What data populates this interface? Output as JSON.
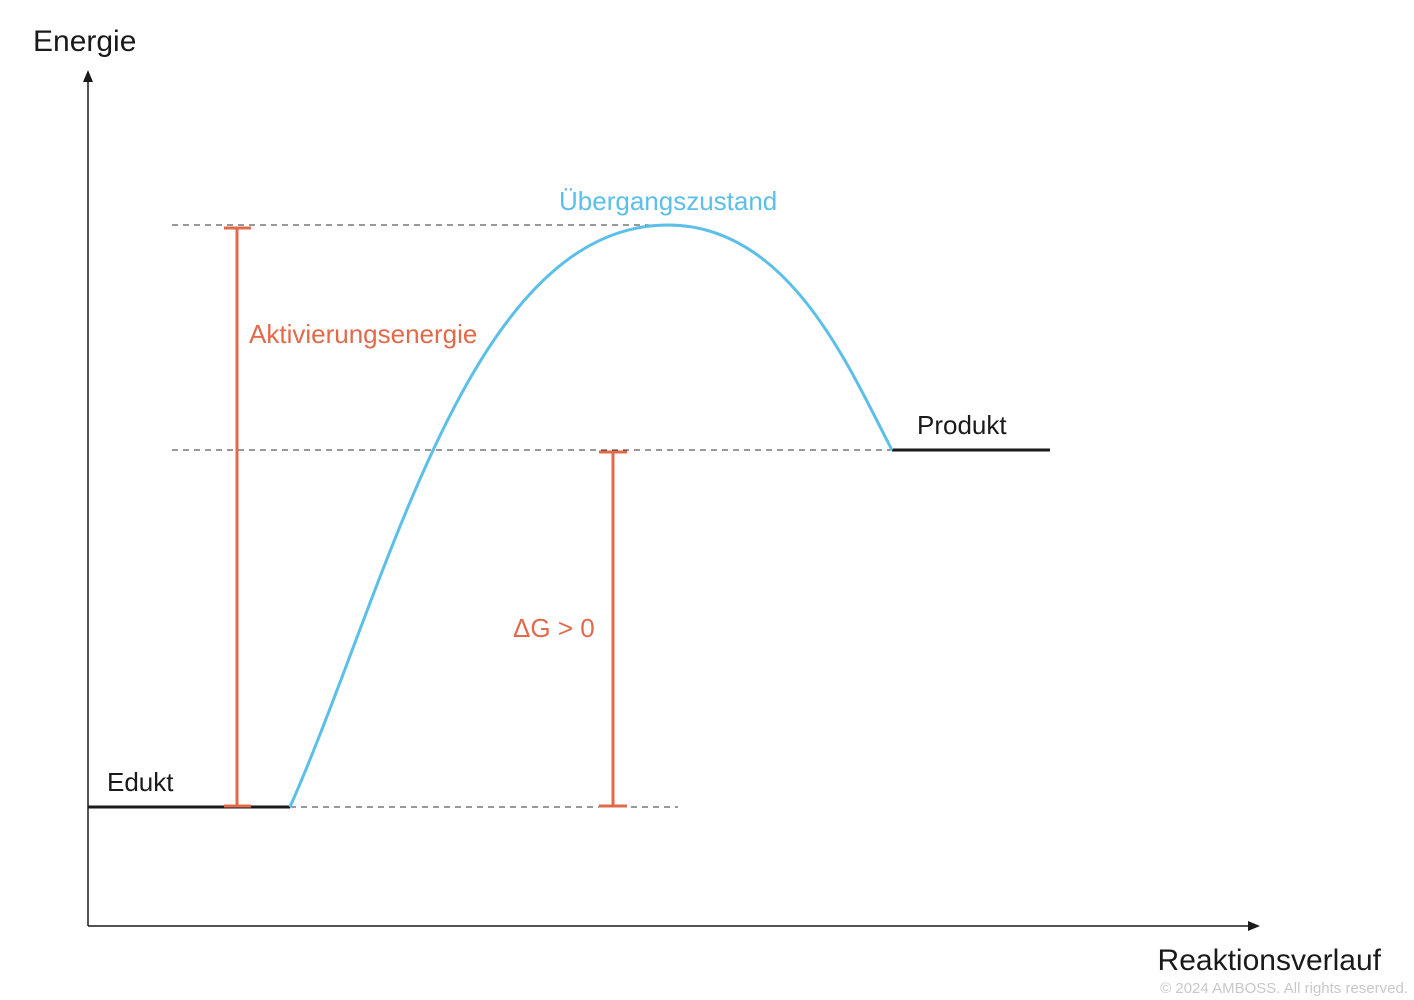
{
  "axes": {
    "y_label": "Energie",
    "x_label": "Reaktionsverlauf"
  },
  "levels": {
    "reactant_label": "Edukt",
    "product_label": "Produkt",
    "transition_label": "Übergangszustand"
  },
  "measures": {
    "activation_label": "Aktivierungsenergie",
    "delta_g_label": "ΔG > 0"
  },
  "footer": {
    "copyright": "© 2024 AMBOSS. All rights reserved."
  },
  "colors": {
    "axis": "#1a1a1a",
    "level_line": "#1a1a1a",
    "guide_dash": "#333333",
    "curve": "#5bbfe8",
    "annotation": "#e2694a",
    "copyright": "#c8c8c8"
  }
}
